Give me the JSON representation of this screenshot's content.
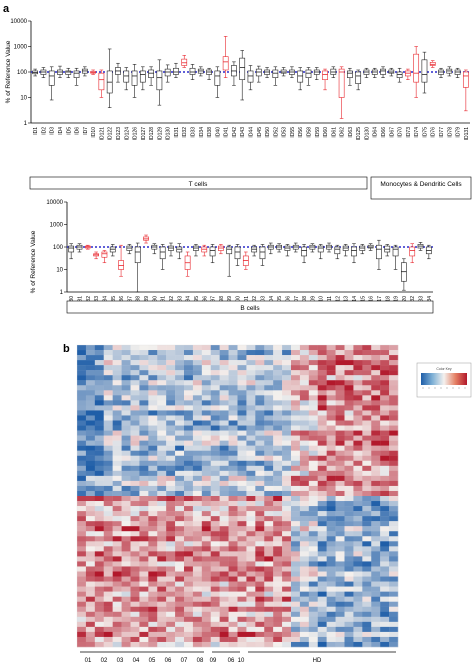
{
  "panels": {
    "a": {
      "label": "a"
    },
    "b": {
      "label": "b"
    }
  },
  "colors": {
    "box_normal": "#222222",
    "box_highlight": "#e8262d",
    "reference_line": "#2b2bcc",
    "heat_low": "#1f5ea8",
    "heat_mid": "#f4f1ee",
    "heat_high": "#b2182b"
  },
  "chart_data": [
    {
      "type": "box",
      "title": "",
      "xlabel": "",
      "ylabel": "% of Reference Value",
      "yscale": "log",
      "ylim": [
        1,
        10000
      ],
      "yticks": [
        "1",
        "10",
        "100",
        "1000",
        "10000"
      ],
      "reference_value": 100,
      "categories": [
        "ID1",
        "ID2",
        "ID3",
        "ID4",
        "ID5",
        "ID6",
        "ID7",
        "ID10",
        "ID121",
        "ID122",
        "ID123",
        "ID124",
        "ID126",
        "ID127",
        "ID128",
        "ID129",
        "ID130",
        "ID31",
        "ID32",
        "ID33",
        "ID34",
        "ID38",
        "ID40",
        "ID41",
        "ID42",
        "ID43",
        "ID44",
        "ID45",
        "ID50",
        "ID52",
        "ID53",
        "ID55",
        "ID56",
        "ID58",
        "ID59",
        "ID60",
        "ID61",
        "ID62",
        "ID63",
        "ID125",
        "ID130",
        "ID64",
        "ID66",
        "ID67",
        "ID70",
        "ID73",
        "ID74",
        "ID75",
        "ID76",
        "ID77",
        "ID78",
        "ID79",
        "ID131"
      ],
      "highlighted": [
        7,
        8,
        18,
        23,
        35,
        37,
        45,
        46,
        48,
        52
      ],
      "boxes": [
        [
          70,
          85,
          95,
          110,
          130
        ],
        [
          60,
          80,
          100,
          120,
          150
        ],
        [
          8,
          30,
          70,
          110,
          160
        ],
        [
          60,
          80,
          100,
          120,
          170
        ],
        [
          60,
          80,
          100,
          110,
          140
        ],
        [
          30,
          60,
          90,
          110,
          140
        ],
        [
          70,
          90,
          110,
          130,
          160
        ],
        [
          80,
          90,
          95,
          105,
          120
        ],
        [
          10,
          20,
          50,
          90,
          120
        ],
        [
          4,
          15,
          40,
          110,
          800
        ],
        [
          40,
          80,
          110,
          150,
          220
        ],
        [
          20,
          40,
          70,
          110,
          150
        ],
        [
          10,
          30,
          70,
          110,
          200
        ],
        [
          20,
          40,
          80,
          110,
          160
        ],
        [
          30,
          60,
          90,
          120,
          160
        ],
        [
          5,
          20,
          60,
          110,
          300
        ],
        [
          40,
          70,
          100,
          130,
          190
        ],
        [
          60,
          80,
          100,
          140,
          220
        ],
        [
          150,
          180,
          230,
          320,
          450
        ],
        [
          50,
          80,
          100,
          140,
          200
        ],
        [
          70,
          90,
          110,
          130,
          160
        ],
        [
          50,
          80,
          100,
          120,
          140
        ],
        [
          10,
          30,
          70,
          110,
          160
        ],
        [
          60,
          120,
          250,
          400,
          2500
        ],
        [
          30,
          70,
          110,
          180,
          250
        ],
        [
          8,
          50,
          150,
          350,
          700
        ],
        [
          20,
          40,
          70,
          110,
          180
        ],
        [
          40,
          70,
          100,
          130,
          170
        ],
        [
          60,
          80,
          100,
          120,
          150
        ],
        [
          30,
          60,
          90,
          120,
          160
        ],
        [
          70,
          90,
          100,
          120,
          150
        ],
        [
          60,
          80,
          100,
          120,
          160
        ],
        [
          20,
          40,
          70,
          110,
          150
        ],
        [
          30,
          60,
          90,
          120,
          150
        ],
        [
          50,
          80,
          100,
          120,
          150
        ],
        [
          20,
          50,
          80,
          110,
          130
        ],
        [
          60,
          80,
          100,
          130,
          160
        ],
        [
          1.5,
          10,
          100,
          130,
          160
        ],
        [
          30,
          60,
          90,
          110,
          140
        ],
        [
          20,
          35,
          70,
          100,
          120
        ],
        [
          60,
          80,
          100,
          120,
          140
        ],
        [
          60,
          80,
          100,
          120,
          140
        ],
        [
          60,
          80,
          110,
          130,
          160
        ],
        [
          70,
          90,
          100,
          120,
          140
        ],
        [
          40,
          60,
          80,
          100,
          140
        ],
        [
          50,
          70,
          90,
          110,
          130
        ],
        [
          10,
          40,
          90,
          500,
          1000
        ],
        [
          15,
          40,
          80,
          300,
          600
        ],
        [
          150,
          180,
          200,
          240,
          280
        ],
        [
          60,
          80,
          100,
          120,
          140
        ],
        [
          70,
          90,
          110,
          130,
          160
        ],
        [
          60,
          80,
          100,
          120,
          140
        ],
        [
          3,
          25,
          70,
          100,
          120
        ]
      ],
      "group_labels": [
        "T cells",
        "Monocytes & Dendritic Cells"
      ]
    },
    {
      "type": "box",
      "title": "",
      "xlabel": "",
      "ylabel": "% of Reference Value",
      "yscale": "log",
      "ylim": [
        1,
        10000
      ],
      "yticks": [
        "1",
        "10",
        "100",
        "1000",
        "10000"
      ],
      "reference_value": 100,
      "categories": [
        "ID80",
        "ID81",
        "ID82",
        "ID83",
        "ID84",
        "ID85",
        "ID86",
        "ID87",
        "ID88",
        "ID89",
        "ID90",
        "ID91",
        "ID92",
        "ID93",
        "ID94",
        "ID95",
        "ID96",
        "ID97",
        "ID98",
        "ID99",
        "ID100",
        "ID101",
        "ID102",
        "ID103",
        "ID104",
        "ID105",
        "ID106",
        "ID107",
        "ID108",
        "ID109",
        "ID110",
        "ID111",
        "ID112",
        "ID113",
        "ID114",
        "ID115",
        "ID116",
        "ID117",
        "ID118",
        "ID119",
        "ID120",
        "ID132",
        "ID133",
        "ID134"
      ],
      "highlighted": [
        2,
        3,
        4,
        6,
        9,
        14,
        16,
        18,
        21,
        41
      ],
      "boxes": [
        [
          30,
          60,
          90,
          110,
          140
        ],
        [
          60,
          80,
          100,
          120,
          140
        ],
        [
          80,
          90,
          100,
          110,
          120
        ],
        [
          30,
          40,
          45,
          50,
          60
        ],
        [
          20,
          35,
          50,
          60,
          70
        ],
        [
          40,
          60,
          80,
          100,
          130
        ],
        [
          5,
          10,
          15,
          25,
          120
        ],
        [
          50,
          70,
          90,
          110,
          130
        ],
        [
          1,
          20,
          60,
          100,
          150
        ],
        [
          150,
          200,
          230,
          280,
          340
        ],
        [
          50,
          80,
          100,
          120,
          140
        ],
        [
          10,
          30,
          60,
          100,
          130
        ],
        [
          40,
          70,
          90,
          110,
          150
        ],
        [
          30,
          60,
          80,
          100,
          140
        ],
        [
          5,
          10,
          20,
          40,
          60
        ],
        [
          40,
          70,
          90,
          110,
          130
        ],
        [
          40,
          60,
          80,
          100,
          120
        ],
        [
          20,
          40,
          70,
          100,
          130
        ],
        [
          50,
          70,
          90,
          110,
          130
        ],
        [
          5,
          50,
          80,
          100,
          120
        ],
        [
          15,
          30,
          60,
          100,
          130
        ],
        [
          10,
          15,
          25,
          40,
          60
        ],
        [
          40,
          60,
          80,
          100,
          120
        ],
        [
          15,
          30,
          60,
          100,
          130
        ],
        [
          50,
          80,
          100,
          120,
          150
        ],
        [
          60,
          80,
          100,
          120,
          140
        ],
        [
          40,
          70,
          90,
          110,
          130
        ],
        [
          60,
          80,
          100,
          120,
          150
        ],
        [
          20,
          40,
          70,
          100,
          130
        ],
        [
          60,
          80,
          100,
          120,
          140
        ],
        [
          30,
          60,
          90,
          110,
          130
        ],
        [
          60,
          80,
          100,
          120,
          150
        ],
        [
          30,
          50,
          80,
          100,
          120
        ],
        [
          40,
          70,
          90,
          110,
          130
        ],
        [
          20,
          40,
          70,
          100,
          140
        ],
        [
          50,
          70,
          90,
          110,
          130
        ],
        [
          70,
          90,
          100,
          120,
          140
        ],
        [
          10,
          30,
          80,
          120,
          200
        ],
        [
          40,
          60,
          80,
          110,
          130
        ],
        [
          10,
          40,
          80,
          100,
          120
        ],
        [
          1.2,
          3,
          8,
          20,
          30
        ],
        [
          20,
          40,
          70,
          100,
          140
        ],
        [
          70,
          90,
          110,
          130,
          160
        ],
        [
          30,
          50,
          70,
          100,
          120
        ]
      ],
      "group_labels": [
        "B cells"
      ]
    },
    {
      "type": "heatmap",
      "title": "",
      "x_group_labels": [
        "01",
        "02",
        "03",
        "04",
        "05",
        "06",
        "07",
        "08",
        "09",
        "06",
        "10",
        "HD"
      ],
      "legend": {
        "title": "Color Key"
      }
    }
  ]
}
